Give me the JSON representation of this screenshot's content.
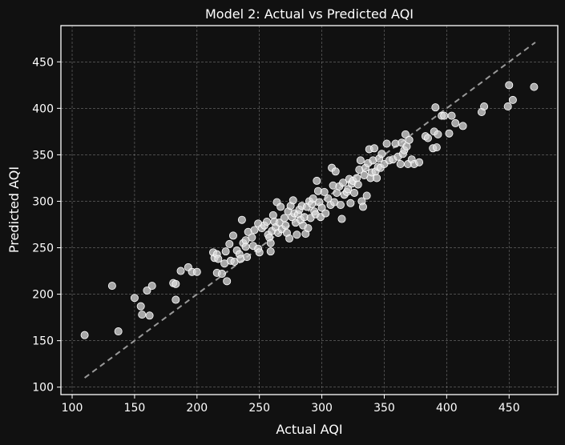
{
  "chart_data": {
    "type": "scatter",
    "title": "Model 2: Actual vs Predicted AQI",
    "xlabel": "Actual AQI",
    "ylabel": "Predicted AQI",
    "xlim": [
      91,
      489
    ],
    "ylim": [
      92,
      489
    ],
    "xticks": [
      "100",
      "150",
      "200",
      "250",
      "300",
      "350",
      "400",
      "450"
    ],
    "yticks": [
      "100",
      "150",
      "200",
      "250",
      "300",
      "350",
      "400",
      "450"
    ],
    "grid": true,
    "reference_line": {
      "style": "dashed",
      "x": [
        110,
        471
      ],
      "y": [
        110,
        471
      ]
    },
    "colors": {
      "background": "#111111",
      "points": "#d9d9d9",
      "reference": "#9a9a9a",
      "text": "#ffffff"
    },
    "points": [
      [
        110,
        156
      ],
      [
        132,
        209
      ],
      [
        137,
        160
      ],
      [
        150,
        196
      ],
      [
        155,
        187
      ],
      [
        156,
        178
      ],
      [
        160,
        204
      ],
      [
        162,
        177
      ],
      [
        164,
        209
      ],
      [
        181,
        212
      ],
      [
        183,
        211
      ],
      [
        183,
        194
      ],
      [
        187,
        225
      ],
      [
        193,
        229
      ],
      [
        196,
        224
      ],
      [
        200,
        224
      ],
      [
        213,
        245
      ],
      [
        214,
        239
      ],
      [
        216,
        243
      ],
      [
        216,
        223
      ],
      [
        217,
        238
      ],
      [
        220,
        222
      ],
      [
        222,
        233
      ],
      [
        223,
        246
      ],
      [
        224,
        214
      ],
      [
        226,
        254
      ],
      [
        227,
        236
      ],
      [
        229,
        263
      ],
      [
        230,
        235
      ],
      [
        232,
        247
      ],
      [
        234,
        243
      ],
      [
        235,
        238
      ],
      [
        236,
        280
      ],
      [
        237,
        255
      ],
      [
        239,
        258
      ],
      [
        239,
        251
      ],
      [
        240,
        240
      ],
      [
        241,
        267
      ],
      [
        244,
        261
      ],
      [
        245,
        252
      ],
      [
        246,
        269
      ],
      [
        249,
        276
      ],
      [
        249,
        249
      ],
      [
        250,
        245
      ],
      [
        252,
        271
      ],
      [
        254,
        274
      ],
      [
        256,
        278
      ],
      [
        257,
        264
      ],
      [
        258,
        261
      ],
      [
        259,
        255
      ],
      [
        259,
        246
      ],
      [
        260,
        268
      ],
      [
        261,
        285
      ],
      [
        262,
        278
      ],
      [
        263,
        272
      ],
      [
        264,
        299
      ],
      [
        265,
        266
      ],
      [
        266,
        277
      ],
      [
        267,
        294
      ],
      [
        268,
        270
      ],
      [
        270,
        282
      ],
      [
        271,
        274
      ],
      [
        272,
        266
      ],
      [
        273,
        289
      ],
      [
        274,
        260
      ],
      [
        275,
        295
      ],
      [
        276,
        283
      ],
      [
        277,
        301
      ],
      [
        278,
        287
      ],
      [
        279,
        277
      ],
      [
        280,
        264
      ],
      [
        281,
        286
      ],
      [
        282,
        291
      ],
      [
        283,
        280
      ],
      [
        284,
        295
      ],
      [
        285,
        274
      ],
      [
        286,
        283
      ],
      [
        287,
        265
      ],
      [
        288,
        294
      ],
      [
        289,
        271
      ],
      [
        290,
        300
      ],
      [
        291,
        282
      ],
      [
        292,
        297
      ],
      [
        293,
        303
      ],
      [
        294,
        289
      ],
      [
        295,
        286
      ],
      [
        296,
        322
      ],
      [
        297,
        311
      ],
      [
        298,
        299
      ],
      [
        299,
        283
      ],
      [
        300,
        293
      ],
      [
        302,
        310
      ],
      [
        303,
        287
      ],
      [
        305,
        303
      ],
      [
        307,
        296
      ],
      [
        308,
        336
      ],
      [
        309,
        317
      ],
      [
        310,
        299
      ],
      [
        311,
        332
      ],
      [
        312,
        309
      ],
      [
        314,
        316
      ],
      [
        315,
        296
      ],
      [
        316,
        281
      ],
      [
        317,
        320
      ],
      [
        318,
        307
      ],
      [
        320,
        310
      ],
      [
        321,
        313
      ],
      [
        322,
        324
      ],
      [
        323,
        298
      ],
      [
        324,
        319
      ],
      [
        325,
        322
      ],
      [
        326,
        309
      ],
      [
        328,
        325
      ],
      [
        329,
        318
      ],
      [
        330,
        334
      ],
      [
        331,
        344
      ],
      [
        332,
        300
      ],
      [
        333,
        294
      ],
      [
        334,
        328
      ],
      [
        335,
        336
      ],
      [
        336,
        306
      ],
      [
        337,
        341
      ],
      [
        338,
        356
      ],
      [
        339,
        325
      ],
      [
        340,
        331
      ],
      [
        341,
        344
      ],
      [
        342,
        357
      ],
      [
        343,
        332
      ],
      [
        344,
        325
      ],
      [
        345,
        337
      ],
      [
        346,
        346
      ],
      [
        347,
        336
      ],
      [
        348,
        351
      ],
      [
        350,
        340
      ],
      [
        352,
        362
      ],
      [
        354,
        344
      ],
      [
        357,
        345
      ],
      [
        359,
        362
      ],
      [
        361,
        348
      ],
      [
        363,
        340
      ],
      [
        364,
        363
      ],
      [
        365,
        351
      ],
      [
        366,
        355
      ],
      [
        367,
        372
      ],
      [
        368,
        359
      ],
      [
        369,
        340
      ],
      [
        370,
        366
      ],
      [
        372,
        345
      ],
      [
        374,
        340
      ],
      [
        378,
        342
      ],
      [
        383,
        370
      ],
      [
        385,
        368
      ],
      [
        389,
        357
      ],
      [
        390,
        375
      ],
      [
        391,
        401
      ],
      [
        392,
        358
      ],
      [
        393,
        372
      ],
      [
        396,
        392
      ],
      [
        398,
        392
      ],
      [
        402,
        373
      ],
      [
        404,
        392
      ],
      [
        407,
        384
      ],
      [
        413,
        381
      ],
      [
        428,
        396
      ],
      [
        430,
        402
      ],
      [
        449,
        402
      ],
      [
        450,
        425
      ],
      [
        453,
        409
      ],
      [
        470,
        423
      ]
    ]
  }
}
